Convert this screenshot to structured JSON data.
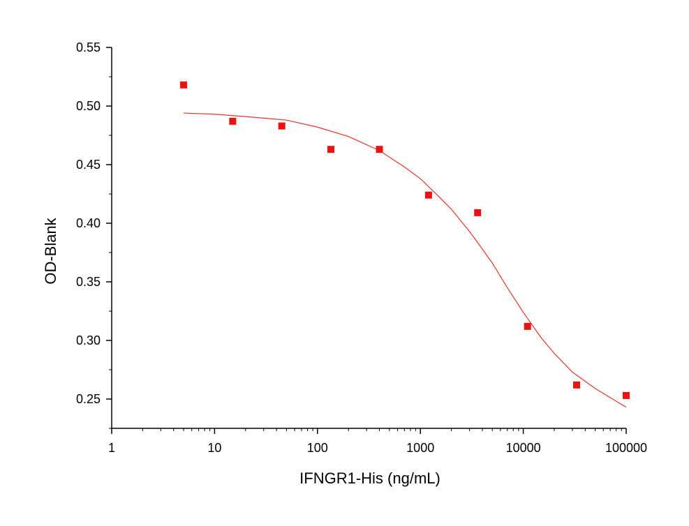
{
  "chart_data": {
    "type": "scatter",
    "title": "",
    "xlabel": "IFNGR1-His (ng/mL)",
    "ylabel": "OD-Blank",
    "xscale": "log",
    "xlim": [
      1,
      100000
    ],
    "ylim": [
      0.225,
      0.55
    ],
    "x_ticks": [
      1,
      10,
      100,
      1000,
      10000,
      100000
    ],
    "x_tick_labels": [
      "1",
      "10",
      "100",
      "1000",
      "10000",
      "100000"
    ],
    "y_ticks": [
      0.25,
      0.3,
      0.35,
      0.4,
      0.45,
      0.5,
      0.55
    ],
    "y_tick_labels": [
      "0.25",
      "0.30",
      "0.35",
      "0.40",
      "0.45",
      "0.50",
      "0.55"
    ],
    "grid": false,
    "legend": "none",
    "series": [
      {
        "kind": "points",
        "marker": "square",
        "color": "#ee1111",
        "x": [
          5,
          15,
          45,
          135,
          400,
          1200,
          3600,
          11000,
          33000,
          100000
        ],
        "y": [
          0.518,
          0.487,
          0.483,
          0.463,
          0.463,
          0.424,
          0.409,
          0.312,
          0.262,
          0.253
        ]
      },
      {
        "kind": "fit",
        "color": "#e8322c",
        "x": [
          5,
          10,
          20,
          50,
          100,
          200,
          400,
          700,
          1000,
          1500,
          2000,
          3000,
          4000,
          5000,
          7000,
          10000,
          15000,
          20000,
          30000,
          50000,
          100000
        ],
        "y": [
          0.494,
          0.493,
          0.491,
          0.488,
          0.482,
          0.474,
          0.462,
          0.448,
          0.438,
          0.423,
          0.412,
          0.393,
          0.378,
          0.366,
          0.345,
          0.324,
          0.302,
          0.289,
          0.273,
          0.259,
          0.243
        ]
      }
    ]
  }
}
